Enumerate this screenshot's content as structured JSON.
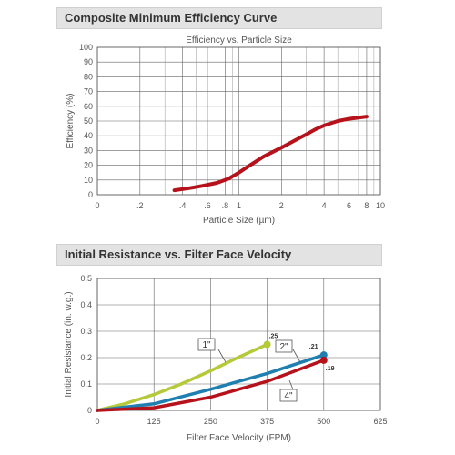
{
  "panels": {
    "top_title": "Composite Minimum Efficiency Curve",
    "bottom_title": "Initial Resistance vs. Filter Face Velocity"
  },
  "colors": {
    "red": "#b5121b",
    "blue": "#1f7fb0",
    "yellow": "#b6c93a"
  },
  "chart_data": [
    {
      "type": "line",
      "title": "Efficiency vs. Particle Size",
      "xlabel": "Particle Size (µm)",
      "ylabel": "Efficiency (%)",
      "xscale": "log",
      "xlim": [
        0.1,
        10
      ],
      "ylim": [
        0,
        100
      ],
      "xticks": [
        0.1,
        0.2,
        0.4,
        0.6,
        0.8,
        1,
        2,
        4,
        6,
        8,
        10
      ],
      "xticklabels": [
        "0",
        ".2",
        ".4",
        ".6",
        ".8",
        "1",
        "2",
        "4",
        "6",
        "8",
        "10"
      ],
      "yticks": [
        0,
        10,
        20,
        30,
        40,
        50,
        60,
        70,
        80,
        90,
        100
      ],
      "grid": true,
      "series": [
        {
          "color": "#b5121b",
          "x": [
            0.35,
            0.45,
            0.55,
            0.7,
            0.85,
            1.0,
            1.2,
            1.5,
            2.0,
            2.5,
            3.0,
            3.5,
            4.0,
            5.0,
            6.0,
            8.0
          ],
          "y": [
            3,
            4.5,
            6,
            8,
            11,
            15,
            20,
            26,
            32,
            37,
            41,
            44.5,
            47,
            50,
            51.5,
            53
          ]
        }
      ]
    },
    {
      "type": "line",
      "title": "",
      "xlabel": "Filter Face Velocity (FPM)",
      "ylabel": "Initial Resistance (in. w.g.)",
      "xlim": [
        0,
        625
      ],
      "ylim": [
        0,
        0.5
      ],
      "xticks": [
        0,
        125,
        250,
        375,
        500,
        625
      ],
      "yticks": [
        0,
        0.1,
        0.2,
        0.3,
        0.4,
        0.5
      ],
      "yticklabels": [
        "0",
        "0.1",
        "0.2",
        "0.3",
        "0.4",
        "0.5"
      ],
      "grid": true,
      "series": [
        {
          "name": "1\"",
          "color": "#b6c93a",
          "x": [
            0,
            60,
            125,
            185,
            250,
            310,
            375
          ],
          "y": [
            0,
            0.025,
            0.06,
            0.1,
            0.15,
            0.2,
            0.25
          ],
          "end_label": ".25"
        },
        {
          "name": "2\"",
          "color": "#1f7fb0",
          "x": [
            0,
            125,
            250,
            375,
            500
          ],
          "y": [
            0,
            0.025,
            0.08,
            0.14,
            0.21
          ],
          "end_label": ".21"
        },
        {
          "name": "4\"",
          "color": "#b5121b",
          "x": [
            0,
            125,
            250,
            375,
            500
          ],
          "y": [
            0,
            0.01,
            0.05,
            0.11,
            0.19
          ],
          "end_label": ".19"
        }
      ]
    }
  ]
}
